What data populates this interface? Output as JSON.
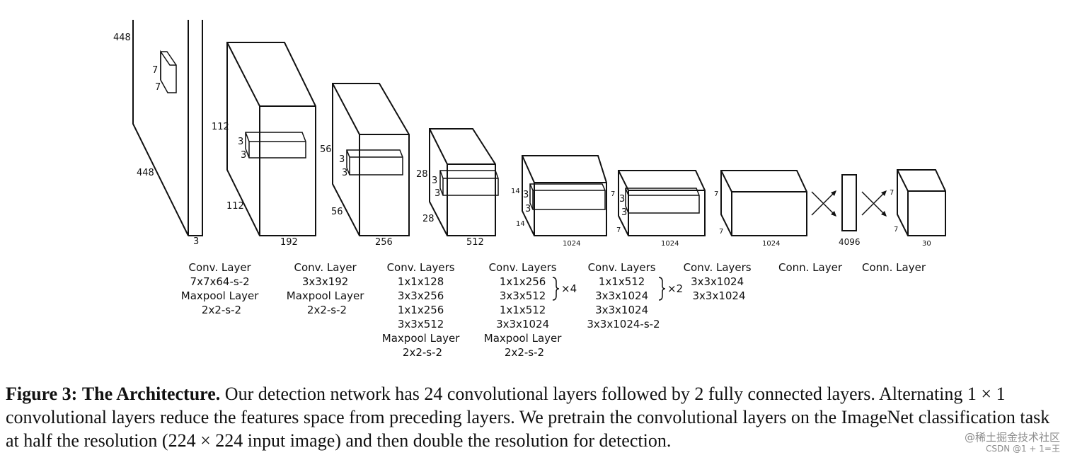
{
  "figure": {
    "dimension_labels": {
      "input_height": "448",
      "input_width": "448",
      "input_depth": "3",
      "input_kernel_h": "7",
      "input_kernel_w": "7",
      "l1_height": "112",
      "l1_width": "112",
      "l1_depth": "192",
      "l1_kernel_h": "3",
      "l1_kernel_w": "3",
      "l2_height": "56",
      "l2_width": "56",
      "l2_depth": "256",
      "l2_kernel_h": "3",
      "l2_kernel_w": "3",
      "l3_height": "28",
      "l3_width": "28",
      "l3_depth": "512",
      "l3_kernel_h": "3",
      "l3_kernel_w": "3",
      "l4_height": "14",
      "l4_width": "14",
      "l4_depth": "1024",
      "l4_kernel_h": "3",
      "l4_kernel_w": "3",
      "l5_height": "7",
      "l5_width": "7",
      "l5_depth": "1024",
      "l5_kernel_h": "3",
      "l5_kernel_w": "3",
      "l6_height": "7",
      "l6_width": "7",
      "l6_depth": "1024",
      "fc_size": "4096",
      "out_height": "7",
      "out_width": "7",
      "out_depth": "30"
    },
    "layer_groups": [
      {
        "lines": [
          "Conv. Layer",
          "7x7x64-s-2",
          "Maxpool Layer",
          "2x2-s-2"
        ]
      },
      {
        "lines": [
          "Conv. Layer",
          "3x3x192",
          "Maxpool Layer",
          "2x2-s-2"
        ]
      },
      {
        "lines": [
          "Conv. Layers",
          "1x1x128",
          "3x3x256",
          "1x1x256",
          "3x3x512",
          "Maxpool Layer",
          "2x2-s-2"
        ]
      },
      {
        "lines": [
          "Conv. Layers",
          "1x1x256",
          "3x3x512",
          "1x1x512",
          "3x3x1024",
          "Maxpool Layer",
          "2x2-s-2"
        ],
        "repeat": "×4"
      },
      {
        "lines": [
          "Conv. Layers",
          "1x1x512",
          "3x3x1024",
          "3x3x1024",
          "3x3x1024-s-2"
        ],
        "repeat": "×2"
      },
      {
        "lines": [
          "Conv. Layers",
          "3x3x1024",
          "3x3x1024"
        ]
      },
      {
        "lines": [
          "Conn. Layer"
        ]
      },
      {
        "lines": [
          "Conn. Layer"
        ]
      }
    ]
  },
  "caption": {
    "label": "Figure 3:",
    "title": "The Architecture.",
    "body": "Our detection network has 24 convolutional layers followed by 2 fully connected layers. Alternating 1 × 1 convolutional layers reduce the features space from preceding layers. We pretrain the convolutional layers on the ImageNet classification task at half the resolution (224 × 224 input image) and then double the resolution for detection."
  },
  "watermark": {
    "line1": "@稀土掘金技术社区",
    "line2": "CSDN @1 + 1=王"
  }
}
